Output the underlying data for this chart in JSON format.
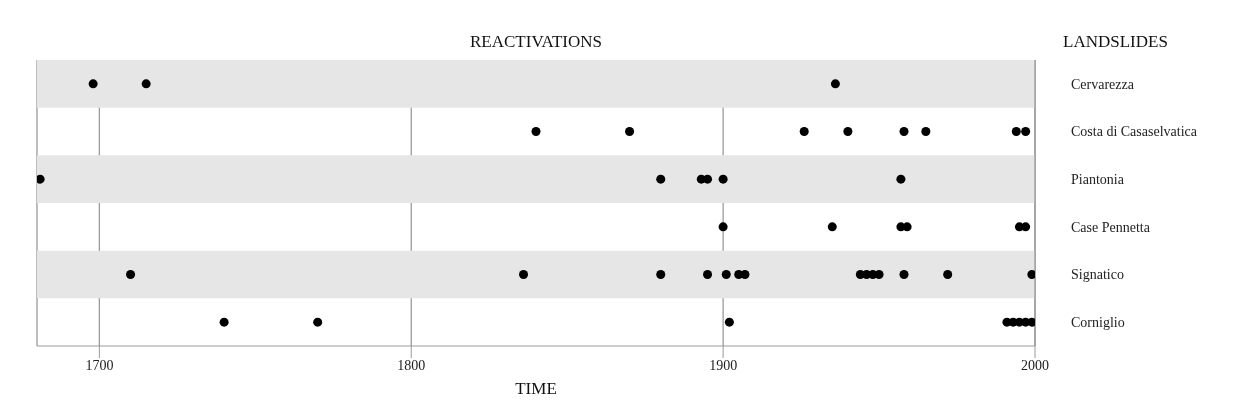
{
  "chart_data": {
    "type": "scatter",
    "title": "REACTIVATIONS",
    "xlabel": "TIME",
    "ylabel": "LANDSLIDES",
    "orientation": "horizontal",
    "categories": [
      "Cervarezza",
      "Costa di Casaselvatica",
      "Piantonia",
      "Case Pennetta",
      "Signatico",
      "Corniglio"
    ],
    "series": [
      {
        "color": "#000000",
        "values": [
          1698,
          1840,
          1681,
          1900,
          1710,
          1740
        ]
      },
      {
        "color": "#000000",
        "values": [
          1715,
          1870,
          1880,
          1935,
          1836,
          1770
        ]
      },
      {
        "color": "#000000",
        "values": [
          1936,
          1926,
          1893,
          1957,
          1880,
          1902
        ]
      },
      {
        "color": "#000000",
        "values": [
          null,
          1940,
          1895,
          1959,
          1895,
          1991
        ]
      },
      {
        "color": "#000000",
        "values": [
          null,
          1958,
          1900,
          1995,
          1901,
          1993
        ]
      },
      {
        "color": "#000000",
        "values": [
          null,
          1965,
          1957,
          1997,
          1905,
          1995
        ]
      },
      {
        "color": "#000000",
        "values": [
          null,
          1994,
          null,
          null,
          1907,
          1997
        ]
      },
      {
        "color": "#000000",
        "values": [
          null,
          1997,
          null,
          null,
          1944,
          1999
        ]
      },
      {
        "color": "#000000",
        "values": [
          null,
          null,
          null,
          null,
          1946,
          null
        ]
      },
      {
        "color": "#000000",
        "values": [
          null,
          null,
          null,
          null,
          1948,
          null
        ]
      },
      {
        "color": "#000000",
        "values": [
          null,
          null,
          null,
          null,
          1950,
          null
        ]
      },
      {
        "color": "#000000",
        "values": [
          null,
          null,
          null,
          null,
          1958,
          null
        ]
      },
      {
        "color": "#000000",
        "values": [
          null,
          null,
          null,
          null,
          1972,
          null
        ]
      },
      {
        "color": "#000000",
        "values": [
          null,
          null,
          null,
          null,
          1999,
          null
        ]
      }
    ],
    "bands": [
      {
        "axis": "y",
        "from": "Cervarezza",
        "to": "Cervarezza",
        "color": "#e6e6e6"
      },
      {
        "axis": "y",
        "from": "Piantonia",
        "to": "Piantonia",
        "color": "#e6e6e6"
      },
      {
        "axis": "y",
        "from": "Signatico",
        "to": "Signatico",
        "color": "#e6e6e6"
      }
    ],
    "xlim": [
      1680,
      2000
    ],
    "xticks": [
      1700,
      1800,
      1900,
      2000
    ],
    "grid": "x",
    "marker": "circle"
  }
}
